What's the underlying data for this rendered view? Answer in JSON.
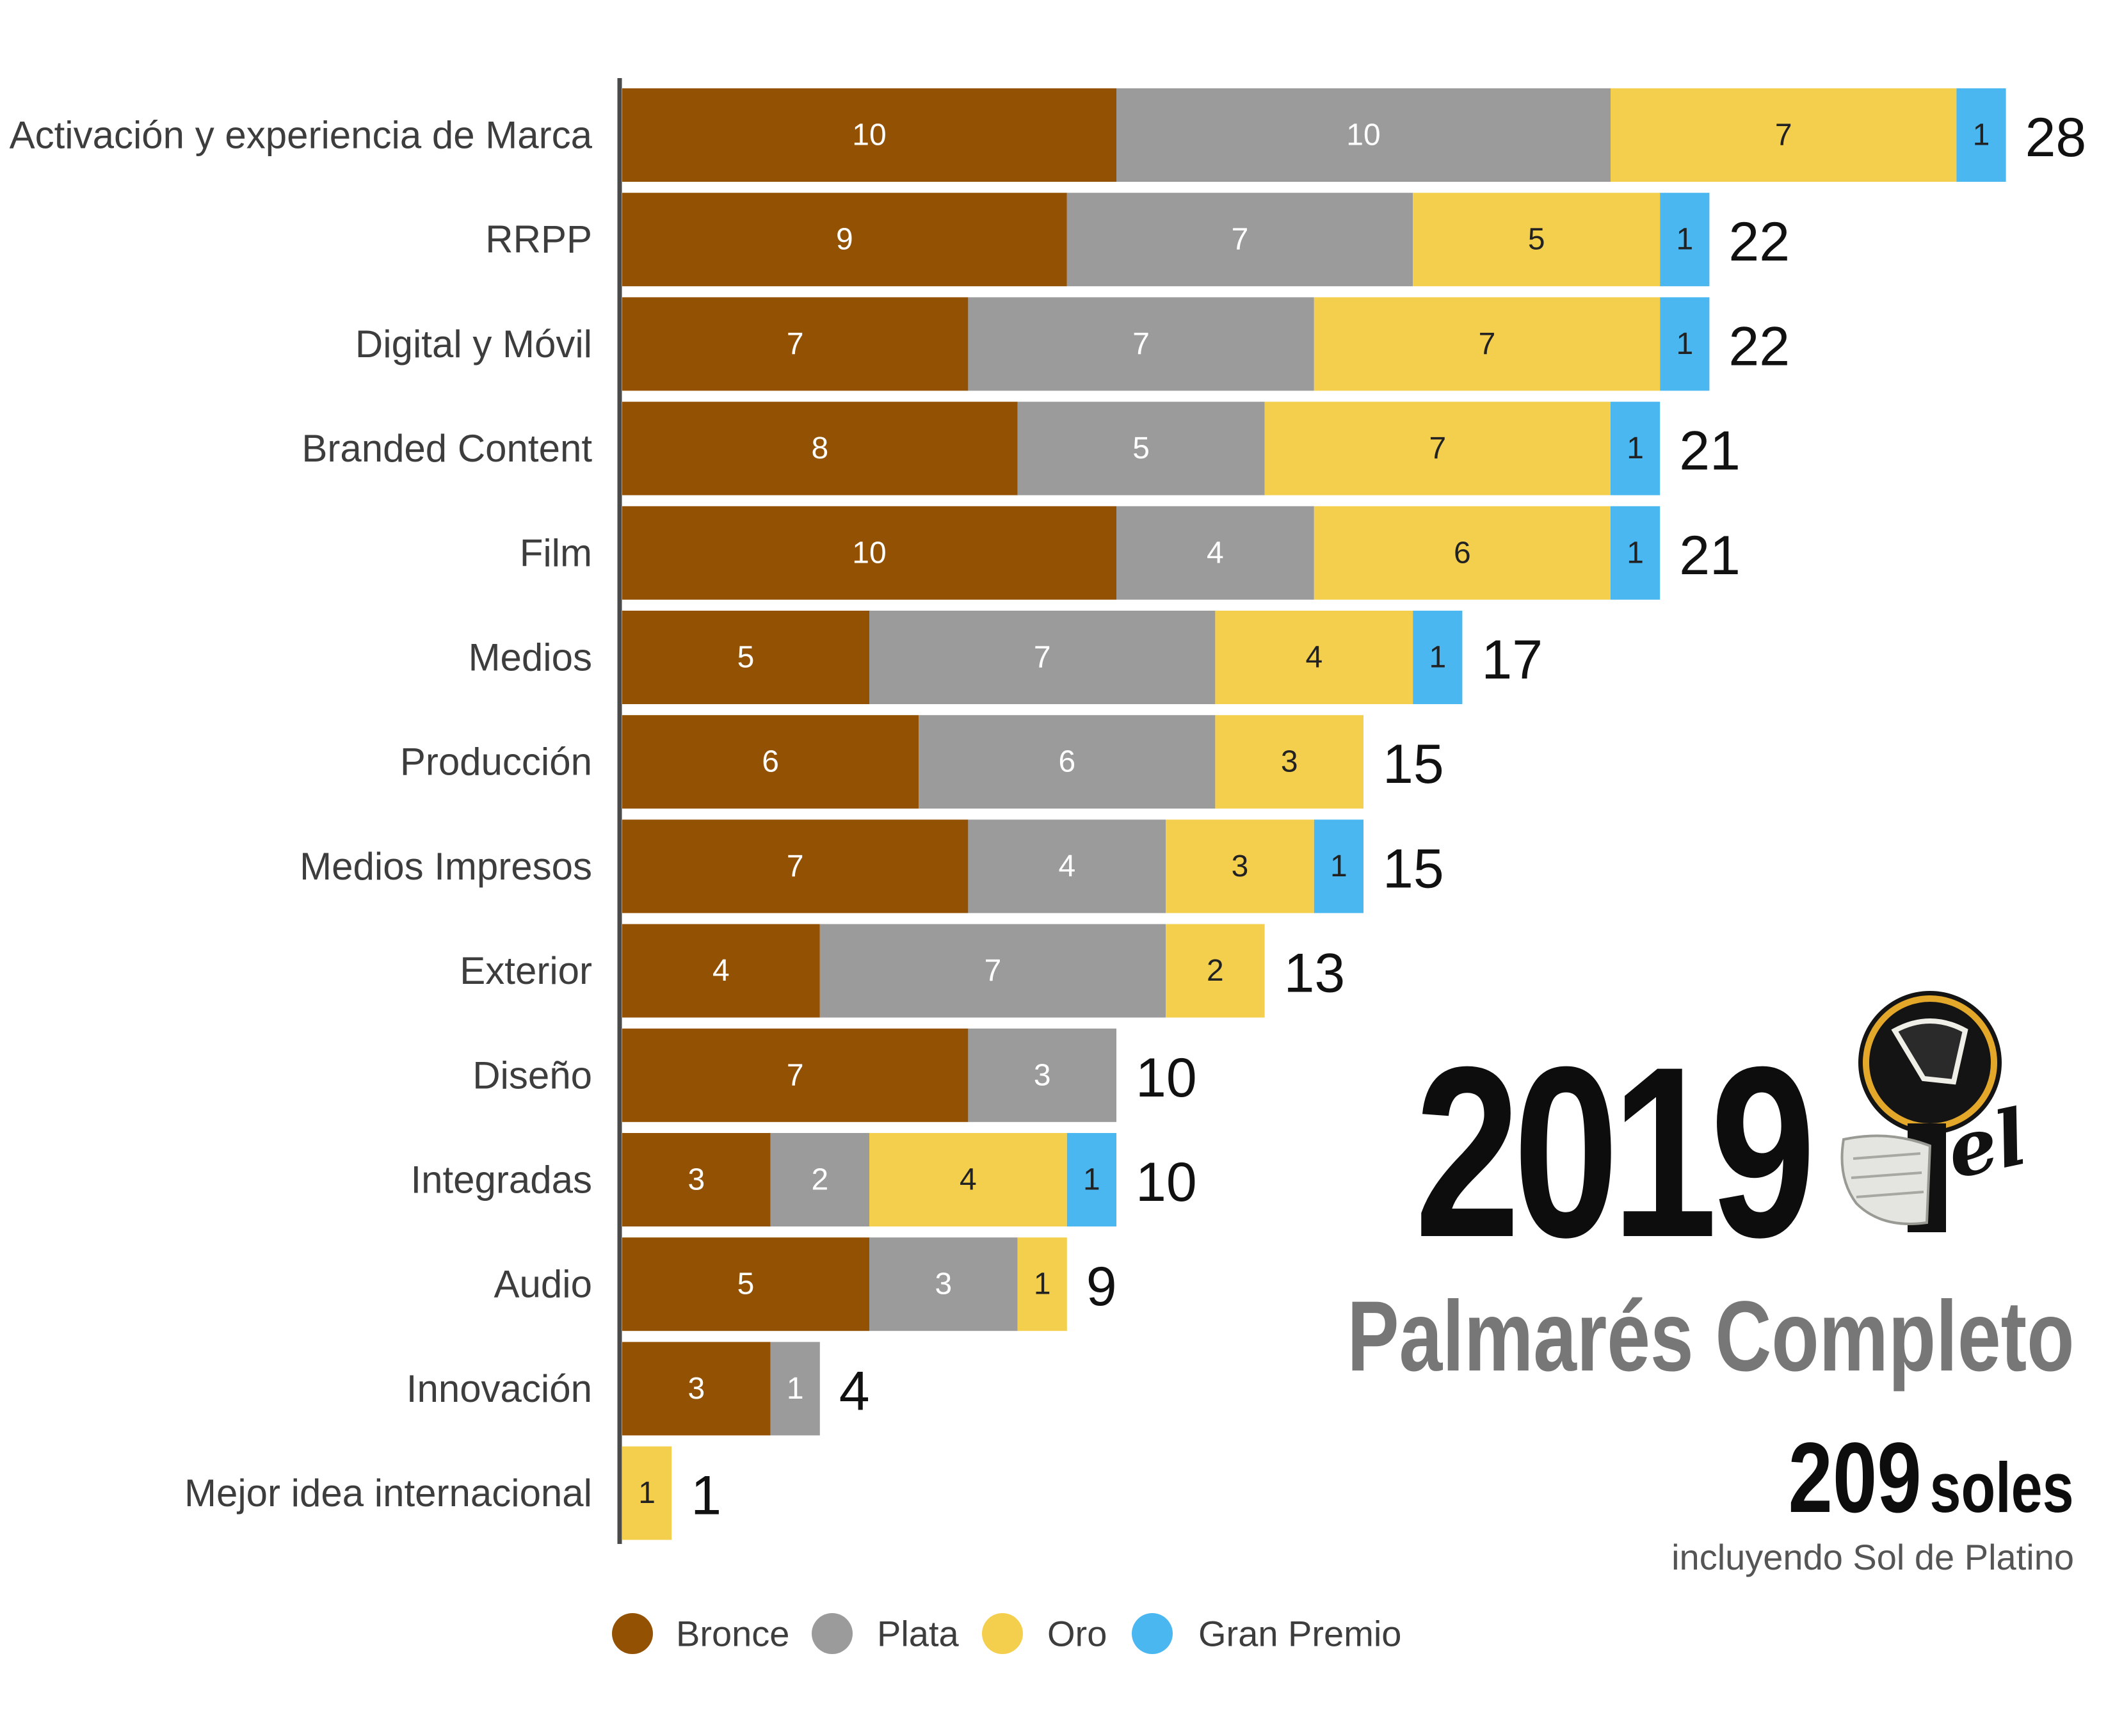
{
  "chart_data": {
    "type": "bar",
    "orientation": "horizontal",
    "stacked": true,
    "categories": [
      "Activación y experiencia de Marca",
      "RRPP",
      "Digital y Móvil",
      "Branded Content",
      "Film",
      "Medios",
      "Producción",
      "Medios Impresos",
      "Exterior",
      "Diseño",
      "Integradas",
      "Audio",
      "Innovación",
      "Mejor idea internacional"
    ],
    "series": [
      {
        "name": "Bronce",
        "color": "#935203",
        "values": [
          10,
          9,
          7,
          8,
          10,
          5,
          6,
          7,
          4,
          7,
          3,
          5,
          3,
          0
        ]
      },
      {
        "name": "Plata",
        "color": "#9b9b9b",
        "values": [
          10,
          7,
          7,
          5,
          4,
          7,
          6,
          4,
          7,
          3,
          2,
          3,
          1,
          0
        ]
      },
      {
        "name": "Oro",
        "color": "#f4cf4e",
        "values": [
          7,
          5,
          7,
          7,
          6,
          4,
          3,
          3,
          2,
          0,
          4,
          1,
          0,
          1
        ]
      },
      {
        "name": "Gran Premio",
        "color": "#4ab7f1",
        "values": [
          1,
          1,
          1,
          1,
          1,
          1,
          0,
          1,
          0,
          0,
          1,
          0,
          0,
          0
        ]
      }
    ],
    "totals": [
      "28",
      "22",
      "22",
      "21",
      "21",
      "17",
      "15",
      "15",
      "13",
      "10",
      "10",
      "9",
      "4",
      "1"
    ],
    "xlim": [
      0,
      28
    ],
    "grid": false,
    "legend_position": "bottom",
    "segment_label_colors": {
      "dark": "#ffffff",
      "light": "#222222"
    }
  },
  "brand": {
    "year": "2019",
    "logo_icon": "el-sol-fist-logo",
    "logo_text": "el Sol",
    "title": "Palmarés Completo",
    "count_number": "209",
    "count_unit": "soles",
    "note": "incluyendo Sol de Platino"
  }
}
